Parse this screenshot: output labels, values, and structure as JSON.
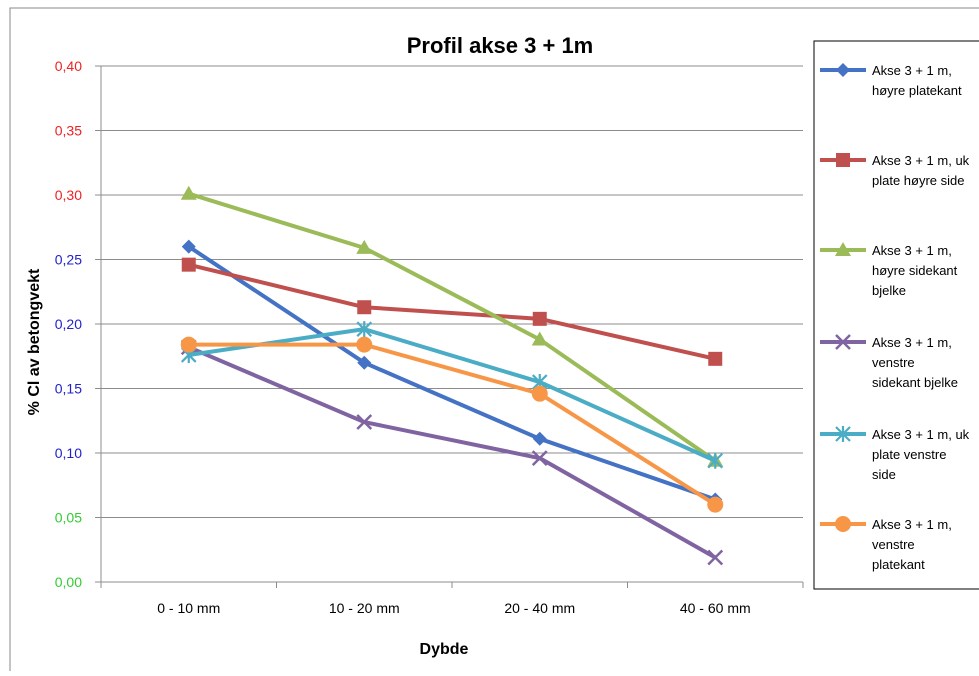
{
  "chart_data": {
    "type": "line",
    "title": "Profil  akse 3 + 1m",
    "xlabel": "Dybde",
    "ylabel": "% Cl av betongvekt",
    "categories": [
      "0 - 10 mm",
      "10 - 20 mm",
      "20 - 40 mm",
      "40 - 60 mm"
    ],
    "ylim": [
      0,
      0.4
    ],
    "yticks": [
      "0,00",
      "0,05",
      "0,10",
      "0,15",
      "0,20",
      "0,25",
      "0,30",
      "0,35",
      "0,40"
    ],
    "ytick_colors": [
      "#33cc33",
      "#33cc33",
      "#2222cc",
      "#2222cc",
      "#2222cc",
      "#2222cc",
      "#ee2222",
      "#ee2222",
      "#ee2222"
    ],
    "grid": true,
    "legend_position": "right",
    "series": [
      {
        "name": "Akse 3 + 1 m, høyre platekant",
        "legend_lines": [
          "Akse 3 + 1 m,",
          "høyre platekant"
        ],
        "color": "#4472c4",
        "marker": "diamond",
        "values": [
          0.26,
          0.17,
          0.111,
          0.064
        ]
      },
      {
        "name": "Akse 3 + 1 m, uk plate høyre side",
        "legend_lines": [
          "Akse 3 + 1 m, uk",
          "plate høyre side"
        ],
        "color": "#c0504d",
        "marker": "square",
        "values": [
          0.246,
          0.213,
          0.204,
          0.173
        ]
      },
      {
        "name": "Akse 3 + 1 m, høyre sidekant bjelke",
        "legend_lines": [
          "Akse 3 + 1 m,",
          "høyre sidekant",
          "bjelke"
        ],
        "color": "#9bbb59",
        "marker": "triangle",
        "values": [
          0.301,
          0.259,
          0.188,
          0.094
        ]
      },
      {
        "name": "Akse 3 + 1 m, venstre sidekant bjelke",
        "legend_lines": [
          "Akse 3 + 1 m,",
          "venstre",
          "sidekant bjelke"
        ],
        "color": "#8064a2",
        "marker": "x",
        "values": [
          0.182,
          0.124,
          0.096,
          0.019
        ]
      },
      {
        "name": "Akse 3 + 1 m, uk plate venstre side",
        "legend_lines": [
          "Akse 3 + 1 m, uk",
          "plate venstre",
          "side"
        ],
        "color": "#4bacc6",
        "marker": "star",
        "values": [
          0.176,
          0.196,
          0.155,
          0.094
        ]
      },
      {
        "name": "Akse 3 + 1 m, venstre platekant",
        "legend_lines": [
          "Akse 3 + 1 m,",
          "venstre",
          "platekant"
        ],
        "color": "#f79646",
        "marker": "circle",
        "values": [
          0.184,
          0.184,
          0.146,
          0.06
        ]
      }
    ]
  }
}
